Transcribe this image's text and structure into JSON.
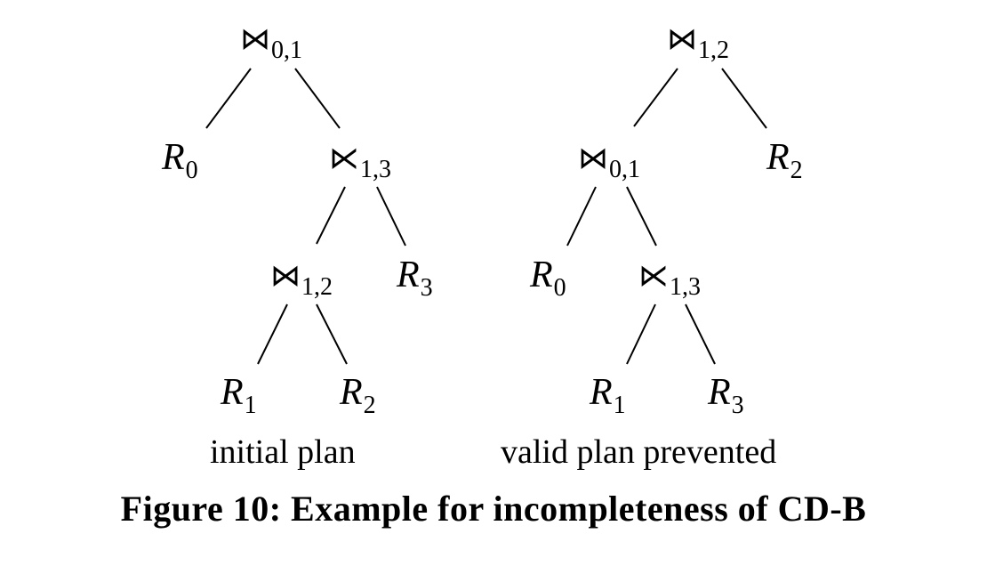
{
  "trees": [
    {
      "label": "initial plan",
      "nodes": [
        {
          "id": "join01",
          "op": "⋈",
          "sub": "0,1"
        },
        {
          "id": "R0",
          "var": "R",
          "sub": "0"
        },
        {
          "id": "semi13",
          "op": "⋉",
          "sub": "1,3"
        },
        {
          "id": "join12",
          "op": "⋈",
          "sub": "1,2"
        },
        {
          "id": "R3",
          "var": "R",
          "sub": "3"
        },
        {
          "id": "R1",
          "var": "R",
          "sub": "1"
        },
        {
          "id": "R2",
          "var": "R",
          "sub": "2"
        }
      ]
    },
    {
      "label": "valid plan prevented",
      "nodes": [
        {
          "id": "join12",
          "op": "⋈",
          "sub": "1,2"
        },
        {
          "id": "join01",
          "op": "⋈",
          "sub": "0,1"
        },
        {
          "id": "R2",
          "var": "R",
          "sub": "2"
        },
        {
          "id": "R0",
          "var": "R",
          "sub": "0"
        },
        {
          "id": "semi13",
          "op": "⋉",
          "sub": "1,3"
        },
        {
          "id": "R1",
          "var": "R",
          "sub": "1"
        },
        {
          "id": "R3",
          "var": "R",
          "sub": "3"
        }
      ]
    }
  ],
  "caption": "Figure 10: Example for incompleteness of CD-B"
}
